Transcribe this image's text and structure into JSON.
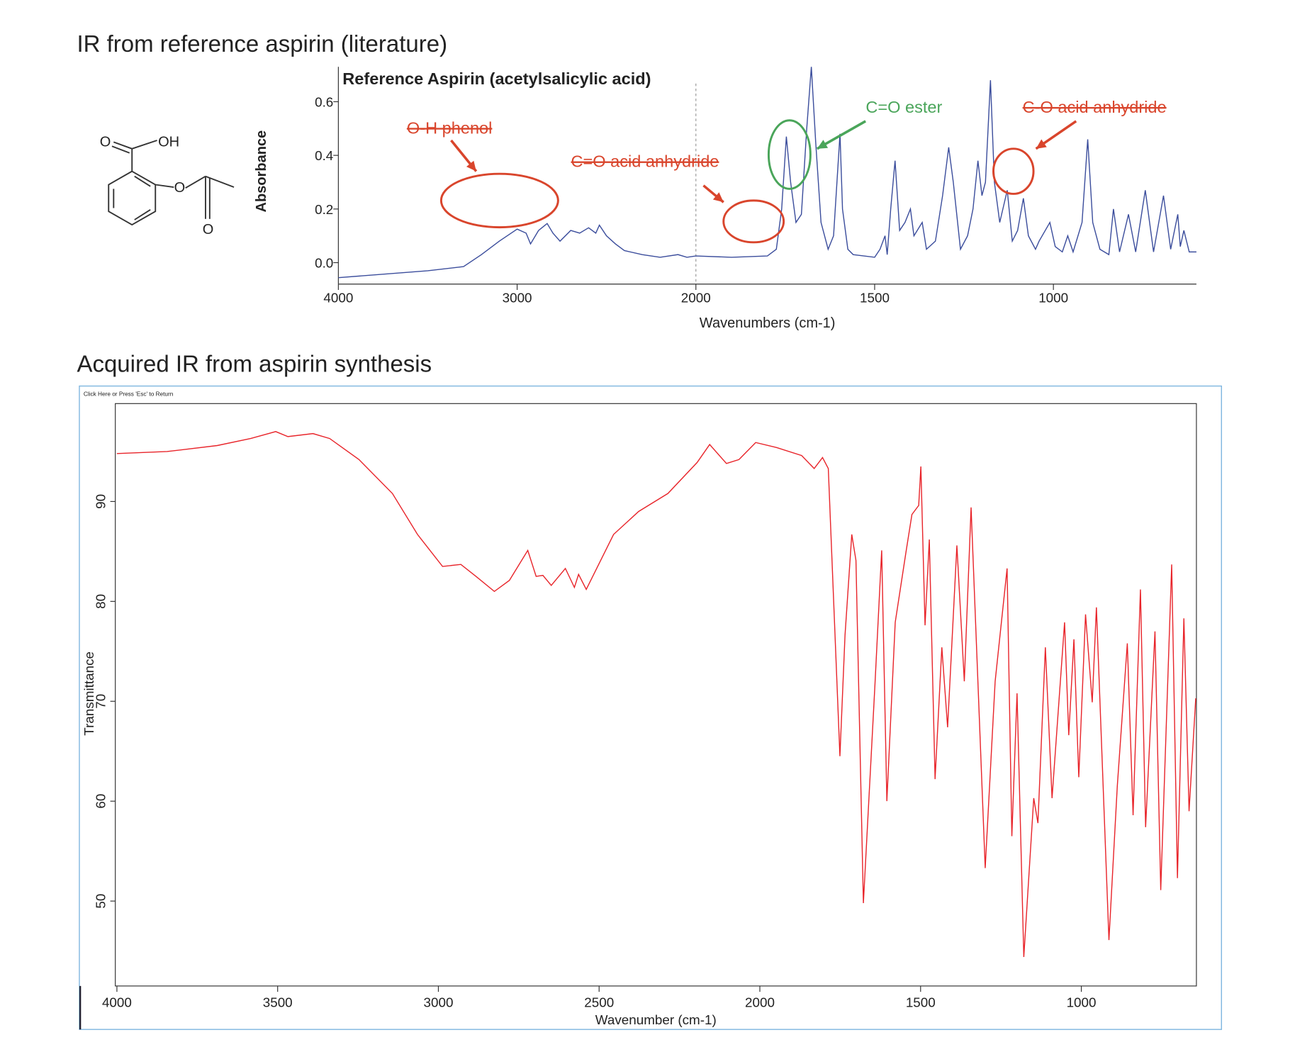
{
  "headings": [
    "IR from reference aspirin (literature)",
    "Acquired IR from aspirin synthesis"
  ],
  "structure": {
    "atoms": [
      "O",
      "OH",
      "O",
      "O"
    ]
  },
  "window": {
    "notice": "Click Here or Press 'Esc' to Return"
  },
  "chart_data": [
    {
      "type": "line",
      "title": "Reference Aspirin (acetylsalicylic acid)",
      "x_label": "Wavenumbers (cm-1)",
      "y_label": "Absorbance",
      "xlim": [
        4000,
        600
      ],
      "x_break": 2000,
      "x_break_stretch": 2,
      "xticks": [
        4000,
        3000,
        2000,
        1500,
        1000
      ],
      "ylim": [
        -0.08,
        0.73
      ],
      "yticks": [
        {
          "value": 0,
          "label": "0.0"
        },
        0.2,
        0.4,
        0.6
      ],
      "color": "#3b4d9c",
      "x": [
        4000,
        3500,
        3300,
        3200,
        3100,
        3000,
        2950,
        2925,
        2880,
        2832,
        2800,
        2760,
        2700,
        2650,
        2600,
        2560,
        2540,
        2500,
        2450,
        2400,
        2300,
        2200,
        2100,
        2050,
        2000,
        1900,
        1800,
        1775,
        1760,
        1747,
        1735,
        1720,
        1705,
        1690,
        1677,
        1665,
        1650,
        1630,
        1615,
        1597,
        1590,
        1575,
        1560,
        1500,
        1485,
        1471,
        1465,
        1455,
        1443,
        1430,
        1415,
        1400,
        1390,
        1367,
        1355,
        1330,
        1310,
        1293,
        1280,
        1260,
        1240,
        1225,
        1211,
        1200,
        1190,
        1176,
        1165,
        1150,
        1129,
        1115,
        1100,
        1084,
        1070,
        1050,
        1040,
        1010,
        995,
        975,
        960,
        945,
        920,
        904,
        890,
        870,
        845,
        832,
        815,
        790,
        770,
        743,
        720,
        692,
        672,
        652,
        645,
        635,
        620,
        600
      ],
      "values": [
        -0.056,
        -0.03,
        -0.015,
        0.03,
        0.08,
        0.125,
        0.11,
        0.07,
        0.12,
        0.146,
        0.11,
        0.08,
        0.12,
        0.11,
        0.13,
        0.11,
        0.14,
        0.1,
        0.07,
        0.045,
        0.03,
        0.02,
        0.03,
        0.02,
        0.025,
        0.02,
        0.025,
        0.05,
        0.2,
        0.47,
        0.3,
        0.15,
        0.18,
        0.5,
        0.73,
        0.45,
        0.15,
        0.05,
        0.1,
        0.48,
        0.2,
        0.05,
        0.03,
        0.02,
        0.05,
        0.1,
        0.03,
        0.2,
        0.38,
        0.12,
        0.15,
        0.2,
        0.1,
        0.15,
        0.05,
        0.08,
        0.25,
        0.43,
        0.3,
        0.05,
        0.1,
        0.2,
        0.38,
        0.25,
        0.3,
        0.68,
        0.3,
        0.15,
        0.27,
        0.08,
        0.12,
        0.24,
        0.1,
        0.05,
        0.08,
        0.15,
        0.06,
        0.04,
        0.1,
        0.04,
        0.15,
        0.46,
        0.15,
        0.05,
        0.03,
        0.2,
        0.04,
        0.18,
        0.04,
        0.27,
        0.04,
        0.25,
        0.05,
        0.18,
        0.06,
        0.12,
        0.04,
        0.04
      ],
      "annotations": [
        {
          "text": "O-H phenol",
          "color": "#d9452c",
          "struck": true
        },
        {
          "text": "C=O acid anhydride",
          "color": "#d9452c",
          "struck": true
        },
        {
          "text": "C=O ester",
          "color": "#4aa55a",
          "struck": false
        },
        {
          "text": "C-O acid anhydride",
          "color": "#d9452c",
          "struck": true
        }
      ]
    },
    {
      "type": "line",
      "x_label": "Wavenumber (cm-1)",
      "y_label": "Transmittance",
      "xlim": [
        4005,
        642
      ],
      "xticks": [
        4000,
        3500,
        3000,
        2500,
        2000,
        1500,
        1000
      ],
      "ylim": [
        41.5,
        99.8
      ],
      "yticks": [
        50,
        60,
        70,
        80,
        90
      ],
      "color": "#e8242a",
      "x": [
        4000,
        3844,
        3688,
        3584,
        3506,
        3468,
        3390,
        3338,
        3247,
        3143,
        3065,
        2987,
        2930,
        2883,
        2826,
        2779,
        2722,
        2696,
        2675,
        2649,
        2605,
        2577,
        2564,
        2540,
        2455,
        2377,
        2286,
        2195,
        2156,
        2104,
        2065,
        2013,
        1948,
        1870,
        1831,
        1805,
        1787,
        1751,
        1735,
        1714,
        1701,
        1678,
        1642,
        1621,
        1605,
        1579,
        1545,
        1527,
        1506,
        1499,
        1486,
        1473,
        1455,
        1434,
        1416,
        1387,
        1364,
        1343,
        1299,
        1268,
        1231,
        1216,
        1200,
        1179,
        1148,
        1135,
        1112,
        1091,
        1052,
        1039,
        1023,
        1008,
        987,
        966,
        953,
        914,
        888,
        857,
        839,
        816,
        800,
        771,
        753,
        719,
        701,
        681,
        665,
        644
      ],
      "values": [
        94.8,
        95.0,
        95.6,
        96.3,
        97.0,
        96.5,
        96.8,
        96.3,
        94.2,
        90.8,
        86.7,
        83.5,
        83.7,
        82.5,
        81.0,
        82.1,
        85.1,
        82.5,
        82.6,
        81.6,
        83.3,
        81.4,
        82.7,
        81.2,
        86.7,
        89.0,
        90.8,
        93.9,
        95.7,
        93.8,
        94.2,
        95.9,
        95.4,
        94.6,
        93.3,
        94.4,
        93.3,
        64.5,
        76.6,
        86.7,
        84.1,
        49.8,
        71.6,
        85.1,
        60.0,
        77.9,
        85.0,
        88.7,
        89.6,
        93.5,
        77.6,
        86.2,
        62.2,
        75.4,
        67.4,
        85.6,
        72.0,
        89.4,
        53.3,
        72.0,
        83.3,
        56.5,
        70.8,
        44.4,
        60.3,
        57.8,
        75.4,
        60.3,
        77.9,
        66.6,
        76.2,
        62.4,
        78.7,
        69.9,
        79.4,
        46.1,
        61.5,
        75.8,
        58.6,
        81.2,
        57.4,
        77.0,
        51.1,
        83.7,
        52.3,
        78.3,
        59.0,
        70.3
      ]
    }
  ]
}
